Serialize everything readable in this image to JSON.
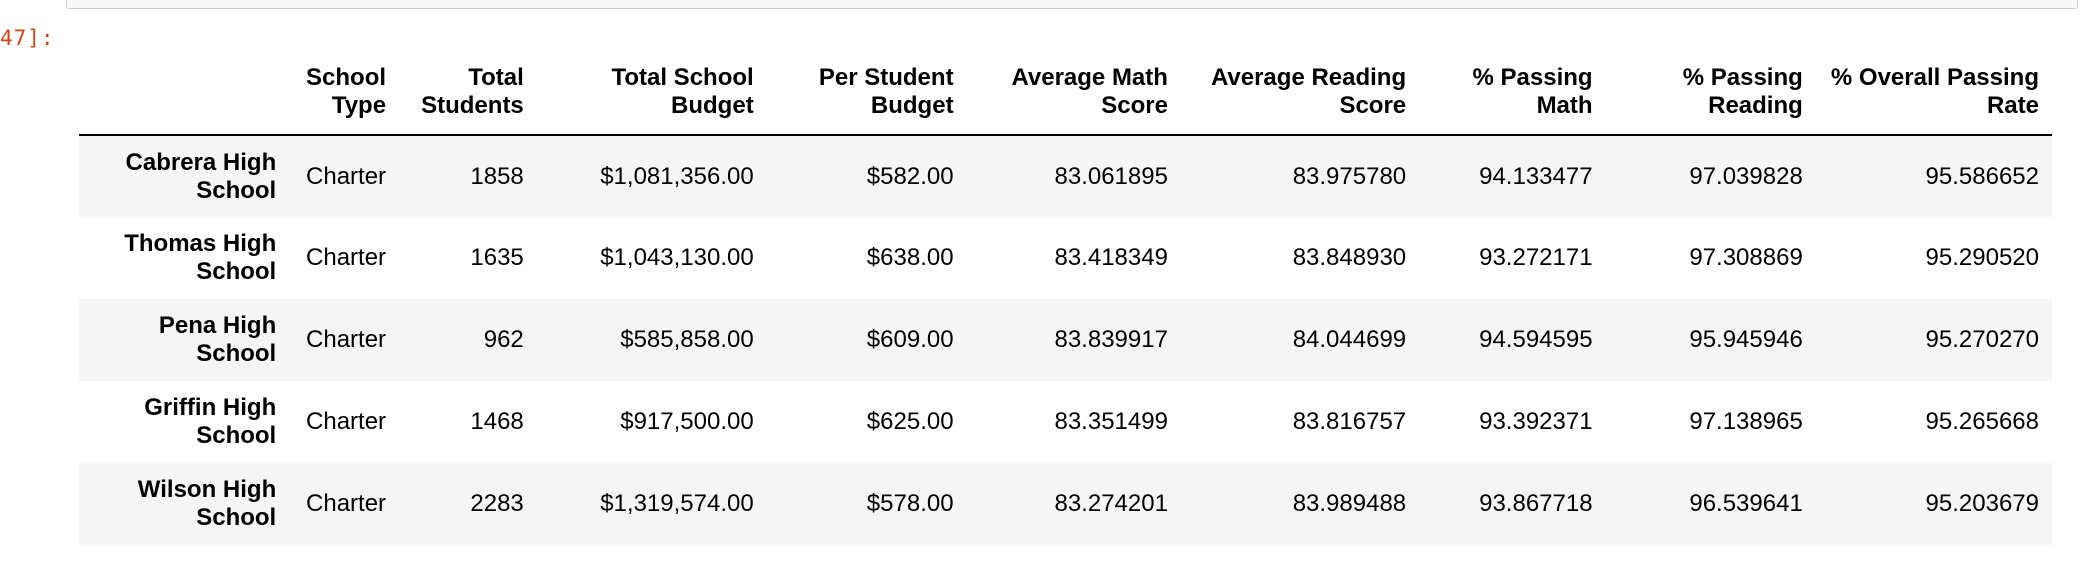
{
  "cell": {
    "prompt_label": "47]:"
  },
  "table": {
    "columns": [
      "",
      "School Type",
      "Total Students",
      "Total School Budget",
      "Per Student Budget",
      "Average Math Score",
      "Average Reading Score",
      "% Passing Math",
      "% Passing Reading",
      "% Overall Passing Rate"
    ],
    "rows": [
      [
        "Cabrera High School",
        "Charter",
        "1858",
        "$1,081,356.00",
        "$582.00",
        "83.061895",
        "83.975780",
        "94.133477",
        "97.039828",
        "95.586652"
      ],
      [
        "Thomas High School",
        "Charter",
        "1635",
        "$1,043,130.00",
        "$638.00",
        "83.418349",
        "83.848930",
        "93.272171",
        "97.308869",
        "95.290520"
      ],
      [
        "Pena High School",
        "Charter",
        "962",
        "$585,858.00",
        "$609.00",
        "83.839917",
        "84.044699",
        "94.594595",
        "95.945946",
        "95.270270"
      ],
      [
        "Griffin High School",
        "Charter",
        "1468",
        "$917,500.00",
        "$625.00",
        "83.351499",
        "83.816757",
        "93.392371",
        "97.138965",
        "95.265668"
      ],
      [
        "Wilson High School",
        "Charter",
        "2283",
        "$1,319,574.00",
        "$578.00",
        "83.274201",
        "83.989488",
        "93.867718",
        "96.539641",
        "95.203679"
      ]
    ]
  },
  "colors": {
    "prompt": "#d84315",
    "stripe": "#f5f5f5",
    "header_rule": "#000000"
  }
}
